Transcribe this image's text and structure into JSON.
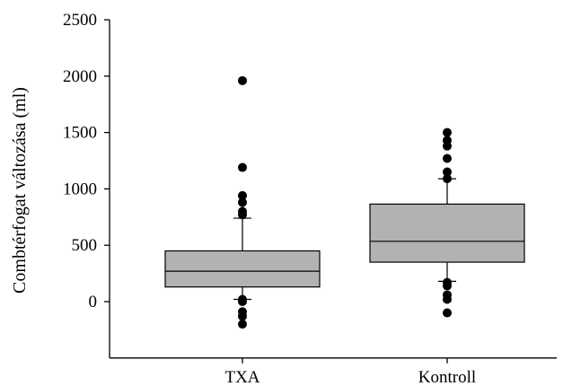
{
  "chart_data": {
    "type": "box",
    "ylabel": "Combtérfogat változása (ml)",
    "ylim": [
      -500,
      2500
    ],
    "yticks": [
      0,
      500,
      1000,
      1500,
      2000,
      2500
    ],
    "grid": false,
    "categories": [
      "TXA",
      "Kontroll"
    ],
    "groups": [
      {
        "category": "TXA",
        "whisker_low": 20,
        "q1": 130,
        "median": 270,
        "q3": 450,
        "whisker_high": 740,
        "outliers": [
          1960,
          1190,
          940,
          880,
          800,
          770,
          20,
          0,
          -90,
          -130,
          -200
        ]
      },
      {
        "category": "Kontroll",
        "whisker_low": 180,
        "q1": 350,
        "median": 535,
        "q3": 865,
        "whisker_high": 1090,
        "outliers": [
          1500,
          1430,
          1380,
          1270,
          1150,
          1090,
          170,
          140,
          60,
          20,
          -100
        ]
      }
    ]
  }
}
